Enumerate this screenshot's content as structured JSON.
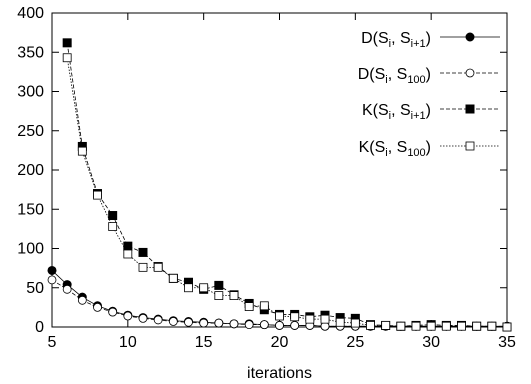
{
  "chart_data": {
    "type": "line",
    "xlabel": "iterations",
    "ylabel": "",
    "xlim": [
      5,
      35
    ],
    "ylim": [
      0,
      400
    ],
    "x_ticks": [
      5,
      10,
      15,
      20,
      25,
      30,
      35
    ],
    "y_ticks": [
      0,
      50,
      100,
      150,
      200,
      250,
      300,
      350,
      400
    ],
    "grid": false,
    "legend_position": "top-right",
    "series": [
      {
        "name": "D(S_i, S_i+1)",
        "legend": {
          "main": "D(S",
          "sub1": "i",
          "sep": ", S",
          "sub2": "i+1",
          "end": ")"
        },
        "marker": "filled-circle",
        "line_style": "solid",
        "x": [
          5,
          6,
          7,
          8,
          9,
          10,
          11,
          12,
          13,
          14,
          15,
          16,
          17,
          18,
          19,
          20,
          21,
          22,
          23,
          24,
          25,
          26,
          27,
          28,
          29,
          30,
          31,
          32,
          33,
          34,
          35
        ],
        "y": [
          72,
          54,
          38,
          27,
          20,
          15,
          12,
          10,
          8,
          7,
          6,
          5,
          4,
          4,
          3,
          2,
          2,
          2,
          1,
          1,
          1,
          1,
          1,
          1,
          1,
          1,
          1,
          1,
          1,
          1,
          1
        ]
      },
      {
        "name": "D(S_i, S_100)",
        "legend": {
          "main": "D(S",
          "sub1": "i",
          "sep": ", S",
          "sub2": "100",
          "end": ")"
        },
        "marker": "open-circle",
        "line_style": "dashed",
        "x": [
          5,
          6,
          7,
          8,
          9,
          10,
          11,
          12,
          13,
          14,
          15,
          16,
          17,
          18,
          19,
          20,
          21,
          22,
          23,
          24,
          25,
          26,
          27,
          28,
          29,
          30,
          31,
          32,
          33,
          34,
          35
        ],
        "y": [
          60,
          48,
          34,
          25,
          19,
          14,
          11,
          9,
          7,
          6,
          5,
          5,
          4,
          3,
          3,
          2,
          2,
          2,
          1,
          1,
          1,
          1,
          1,
          1,
          1,
          1,
          1,
          1,
          1,
          1,
          1
        ]
      },
      {
        "name": "K(S_i, S_i+1)",
        "legend": {
          "main": "K(S",
          "sub1": "i",
          "sep": ", S",
          "sub2": "i+1",
          "end": ")"
        },
        "marker": "filled-square",
        "line_style": "dashed",
        "x": [
          6,
          7,
          8,
          9,
          10,
          11,
          12,
          13,
          14,
          15,
          16,
          17,
          18,
          19,
          20,
          21,
          22,
          23,
          24,
          25,
          26,
          27,
          28,
          29,
          30,
          31,
          32,
          33,
          34,
          35
        ],
        "y": [
          362,
          230,
          170,
          142,
          103,
          95,
          77,
          62,
          57,
          48,
          53,
          41,
          30,
          22,
          16,
          16,
          13,
          15,
          12,
          11,
          3,
          2,
          1,
          2,
          3,
          2,
          2,
          1,
          1,
          0
        ]
      },
      {
        "name": "K(S_i, S_100)",
        "legend": {
          "main": "K(S",
          "sub1": "i",
          "sep": ", S",
          "sub2": "100",
          "end": ")"
        },
        "marker": "open-square",
        "line_style": "dotted",
        "x": [
          6,
          7,
          8,
          9,
          10,
          11,
          12,
          13,
          14,
          15,
          16,
          17,
          18,
          19,
          20,
          21,
          22,
          23,
          24,
          25,
          26,
          27,
          28,
          29,
          30,
          31,
          32,
          33,
          34,
          35
        ],
        "y": [
          343,
          224,
          168,
          128,
          93,
          76,
          76,
          62,
          50,
          50,
          40,
          40,
          26,
          27,
          14,
          13,
          10,
          10,
          6,
          5,
          2,
          2,
          1,
          1,
          1,
          1,
          1,
          1,
          1,
          0
        ]
      }
    ]
  }
}
